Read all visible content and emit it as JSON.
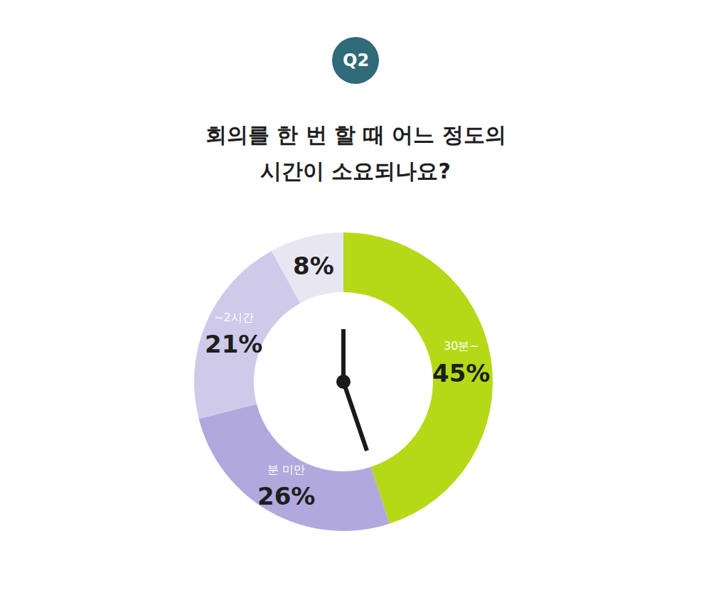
{
  "badge": "Q2",
  "chart_data": {
    "type": "pie",
    "title": "회의를 한 번 할 때 어느 정도의 시간이 소요되나요?",
    "categories": [
      "30분~",
      "분 미만",
      "~2시간",
      null
    ],
    "values": [
      45,
      26,
      21,
      8
    ],
    "value_labels": [
      "45%",
      "26%",
      "21%",
      "8%"
    ],
    "colors": [
      "#b5d916",
      "#b1a9dd",
      "#cfcaea",
      "#e9e6f4"
    ],
    "data_labels": true
  }
}
